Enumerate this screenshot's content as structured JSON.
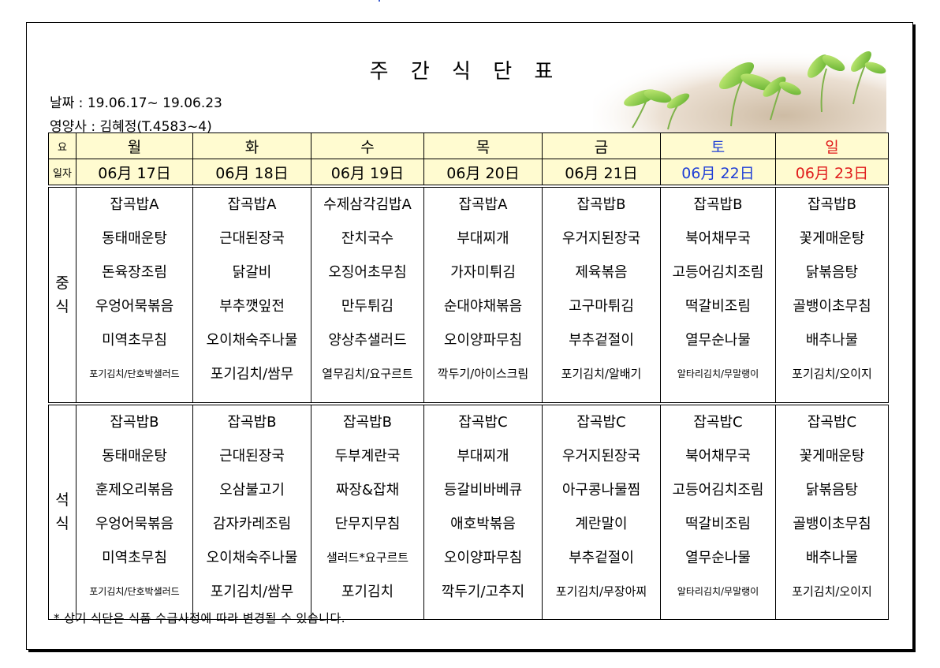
{
  "title": "주 간 식 단 표",
  "date_line": "날짜 : 19.06.17~ 19.06.23",
  "nutritionist_line": "영양사 : 김혜정(T.4583~4)",
  "header": {
    "day_label": "요",
    "date_label": "일자",
    "days": [
      "월",
      "화",
      "수",
      "목",
      "금",
      "토",
      "일"
    ],
    "dates": [
      "06月 17日",
      "06月 18日",
      "06月 19日",
      "06月 20日",
      "06月 21日",
      "06月 22日",
      "06月 23日"
    ]
  },
  "lunch": {
    "label_1": "중",
    "label_2": "식",
    "days": [
      [
        "잡곡밥A",
        "동태매운탕",
        "돈육장조림",
        "우엉어묵볶음",
        "미역초무침",
        "포기김치/단호박샐러드"
      ],
      [
        "잡곡밥A",
        "근대된장국",
        "닭갈비",
        "부추깻잎전",
        "오이채숙주나물",
        "포기김치/쌈무"
      ],
      [
        "수제삼각김밥A",
        "잔치국수",
        "오징어초무침",
        "만두튀김",
        "양상추샐러드",
        "열무김치/요구르트"
      ],
      [
        "잡곡밥A",
        "부대찌개",
        "가자미튀김",
        "순대야채볶음",
        "오이양파무침",
        "깍두기/아이스크림"
      ],
      [
        "잡곡밥B",
        "우거지된장국",
        "제육볶음",
        "고구마튀김",
        "부추겉절이",
        "포기김치/알배기"
      ],
      [
        "잡곡밥B",
        "북어채무국",
        "고등어김치조림",
        "떡갈비조림",
        "열무순나물",
        "알타리김치/무말랭이"
      ],
      [
        "잡곡밥B",
        "꽃게매운탕",
        "닭볶음탕",
        "골뱅이초무침",
        "배추나물",
        "포기김치/오이지"
      ]
    ]
  },
  "dinner": {
    "label_1": "석",
    "label_2": "식",
    "days": [
      [
        "잡곡밥B",
        "동태매운탕",
        "훈제오리볶음",
        "우엉어묵볶음",
        "미역초무침",
        "포기김치/단호박샐러드"
      ],
      [
        "잡곡밥B",
        "근대된장국",
        "오삼불고기",
        "감자카레조림",
        "오이채숙주나물",
        "포기김치/쌈무"
      ],
      [
        "잡곡밥B",
        "두부계란국",
        "짜장&잡채",
        "단무지무침",
        "샐러드*요구르트",
        "포기김치"
      ],
      [
        "잡곡밥C",
        "부대찌개",
        "등갈비바베큐",
        "애호박볶음",
        "오이양파무침",
        "깍두기/고추지"
      ],
      [
        "잡곡밥C",
        "우거지된장국",
        "아구콩나물찜",
        "계란말이",
        "부추겉절이",
        "포기김치/무장아찌"
      ],
      [
        "잡곡밥C",
        "북어채무국",
        "고등어김치조림",
        "떡갈비조림",
        "열무순나물",
        "알타리김치/무말랭이"
      ],
      [
        "잡곡밥C",
        "꽃게매운탕",
        "닭볶음탕",
        "골뱅이초무침",
        "배추나물",
        "포기김치/오이지"
      ]
    ]
  },
  "footer_note": "* 상기 식단은 식품 수급사정에 따라 변경될 수 있습니다.",
  "colors": {
    "header_bg": "#fffbd0",
    "saturday": "#1f3fd6",
    "sunday": "#e01b1b"
  },
  "decor_image": "sprouts-image"
}
